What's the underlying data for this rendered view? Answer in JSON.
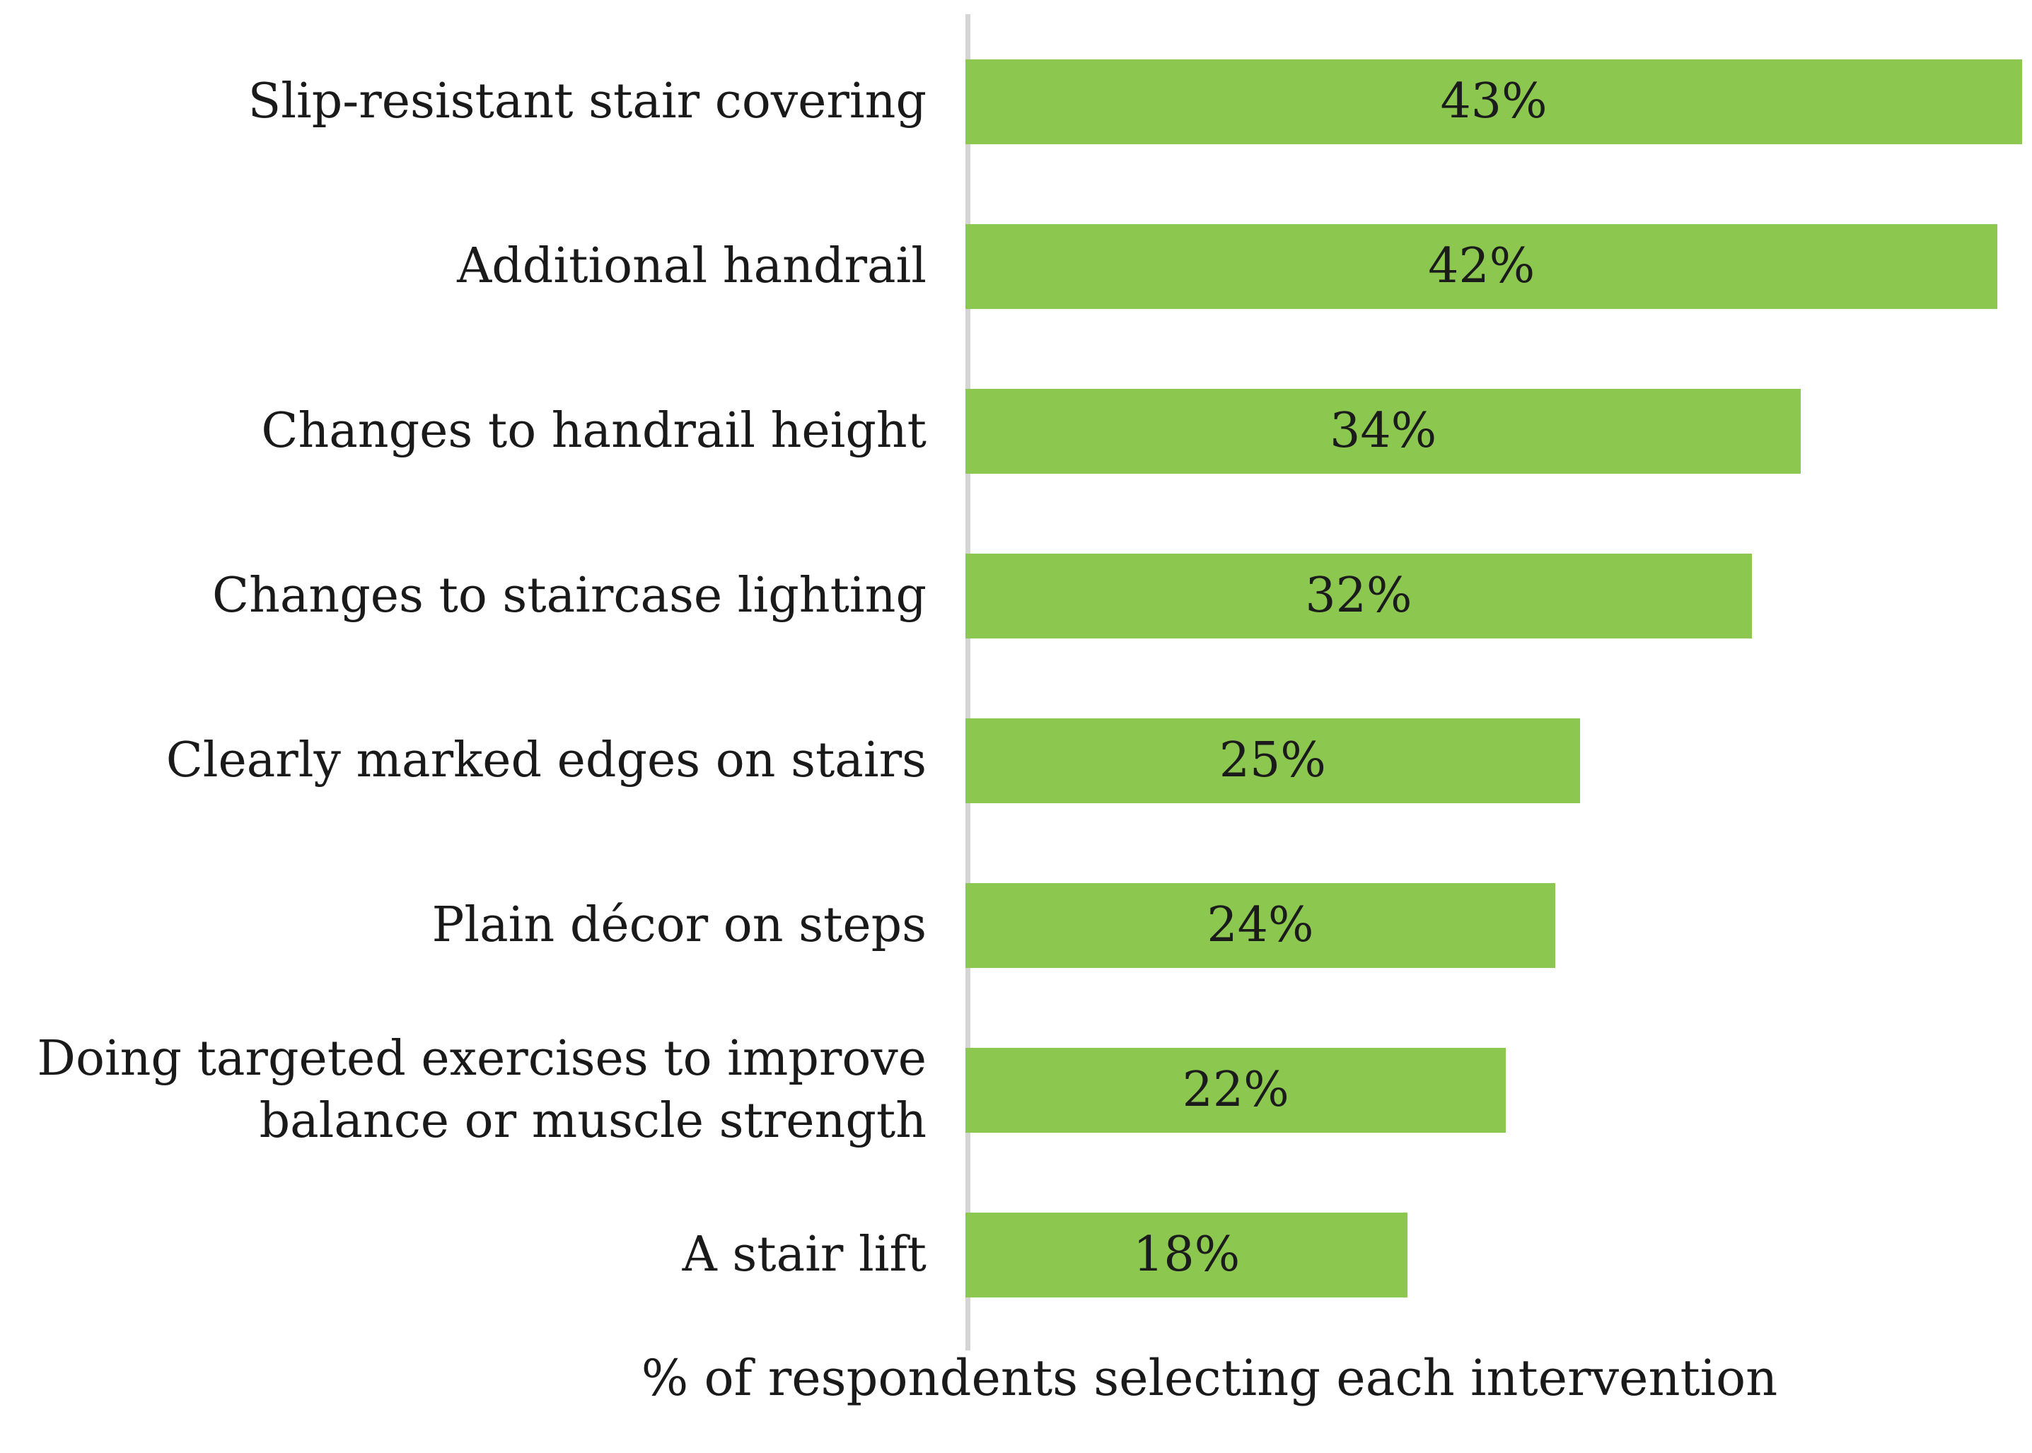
{
  "chart_data": {
    "type": "bar",
    "orientation": "horizontal",
    "title": "",
    "categories": [
      "Slip-resistant stair covering",
      "Additional handrail",
      "Changes to handrail height",
      "Changes to staircase lighting",
      "Clearly marked edges on stairs",
      "Plain décor on steps",
      "Doing targeted exercises to improve balance or muscle strength",
      "A stair lift"
    ],
    "values": [
      43,
      42,
      34,
      32,
      25,
      24,
      22,
      18
    ],
    "value_labels": [
      "43%",
      "42%",
      "34%",
      "32%",
      "25%",
      "24%",
      "22%",
      "18%"
    ],
    "xlabel": "% of respondents selecting each intervention",
    "ylabel": "",
    "xlim": [
      0,
      43.4
    ],
    "grid": false,
    "legend": false,
    "bar_color": "#8cc84f",
    "axis_line_color": "#d5d5d5",
    "text_color": "#1a1a1a"
  }
}
